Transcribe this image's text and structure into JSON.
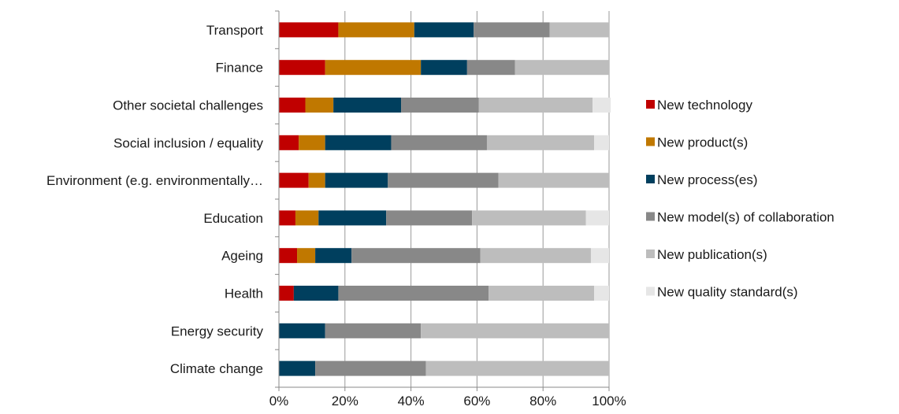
{
  "chart_data": {
    "type": "bar",
    "orientation": "horizontal",
    "stacked": "percent",
    "categories": [
      "Transport",
      "Finance",
      "Other societal challenges",
      "Social inclusion / equality",
      "Environment (e.g. environmentally…",
      "Education",
      "Ageing",
      "Health",
      "Energy security",
      "Climate change"
    ],
    "series": [
      {
        "name": "New technology",
        "color": "#c00000",
        "values": [
          18,
          14,
          8,
          6,
          9,
          5,
          5.5,
          4.5,
          0,
          0
        ]
      },
      {
        "name": "New product(s)",
        "color": "#c07800",
        "values": [
          23,
          29,
          8.5,
          8,
          5,
          7,
          5.5,
          0,
          0,
          0
        ]
      },
      {
        "name": "New process(es)",
        "color": "#003f5e",
        "values": [
          18,
          14,
          20.5,
          20,
          19,
          20.5,
          11,
          13.5,
          14,
          11
        ]
      },
      {
        "name": "New model(s) of collaboration",
        "color": "#888888",
        "values": [
          23,
          14.5,
          23.5,
          29,
          33.5,
          26,
          39,
          45.5,
          29,
          33.5
        ]
      },
      {
        "name": "New publication(s)",
        "color": "#bdbdbd",
        "values": [
          18,
          28.5,
          34.5,
          32.5,
          33.5,
          34.5,
          33.5,
          32,
          57,
          55.5
        ]
      },
      {
        "name": "New quality standard(s)",
        "color": "#e6e6e6",
        "values": [
          0,
          0,
          5.5,
          4.5,
          0,
          7,
          5.5,
          4.5,
          0,
          0
        ]
      }
    ],
    "xlim": [
      0,
      100
    ],
    "x_tick_labels": [
      "0%",
      "20%",
      "40%",
      "60%",
      "80%",
      "100%"
    ],
    "legend_position": "right",
    "grid": "vertical-lines",
    "grid_color": "#9a9a9a"
  }
}
